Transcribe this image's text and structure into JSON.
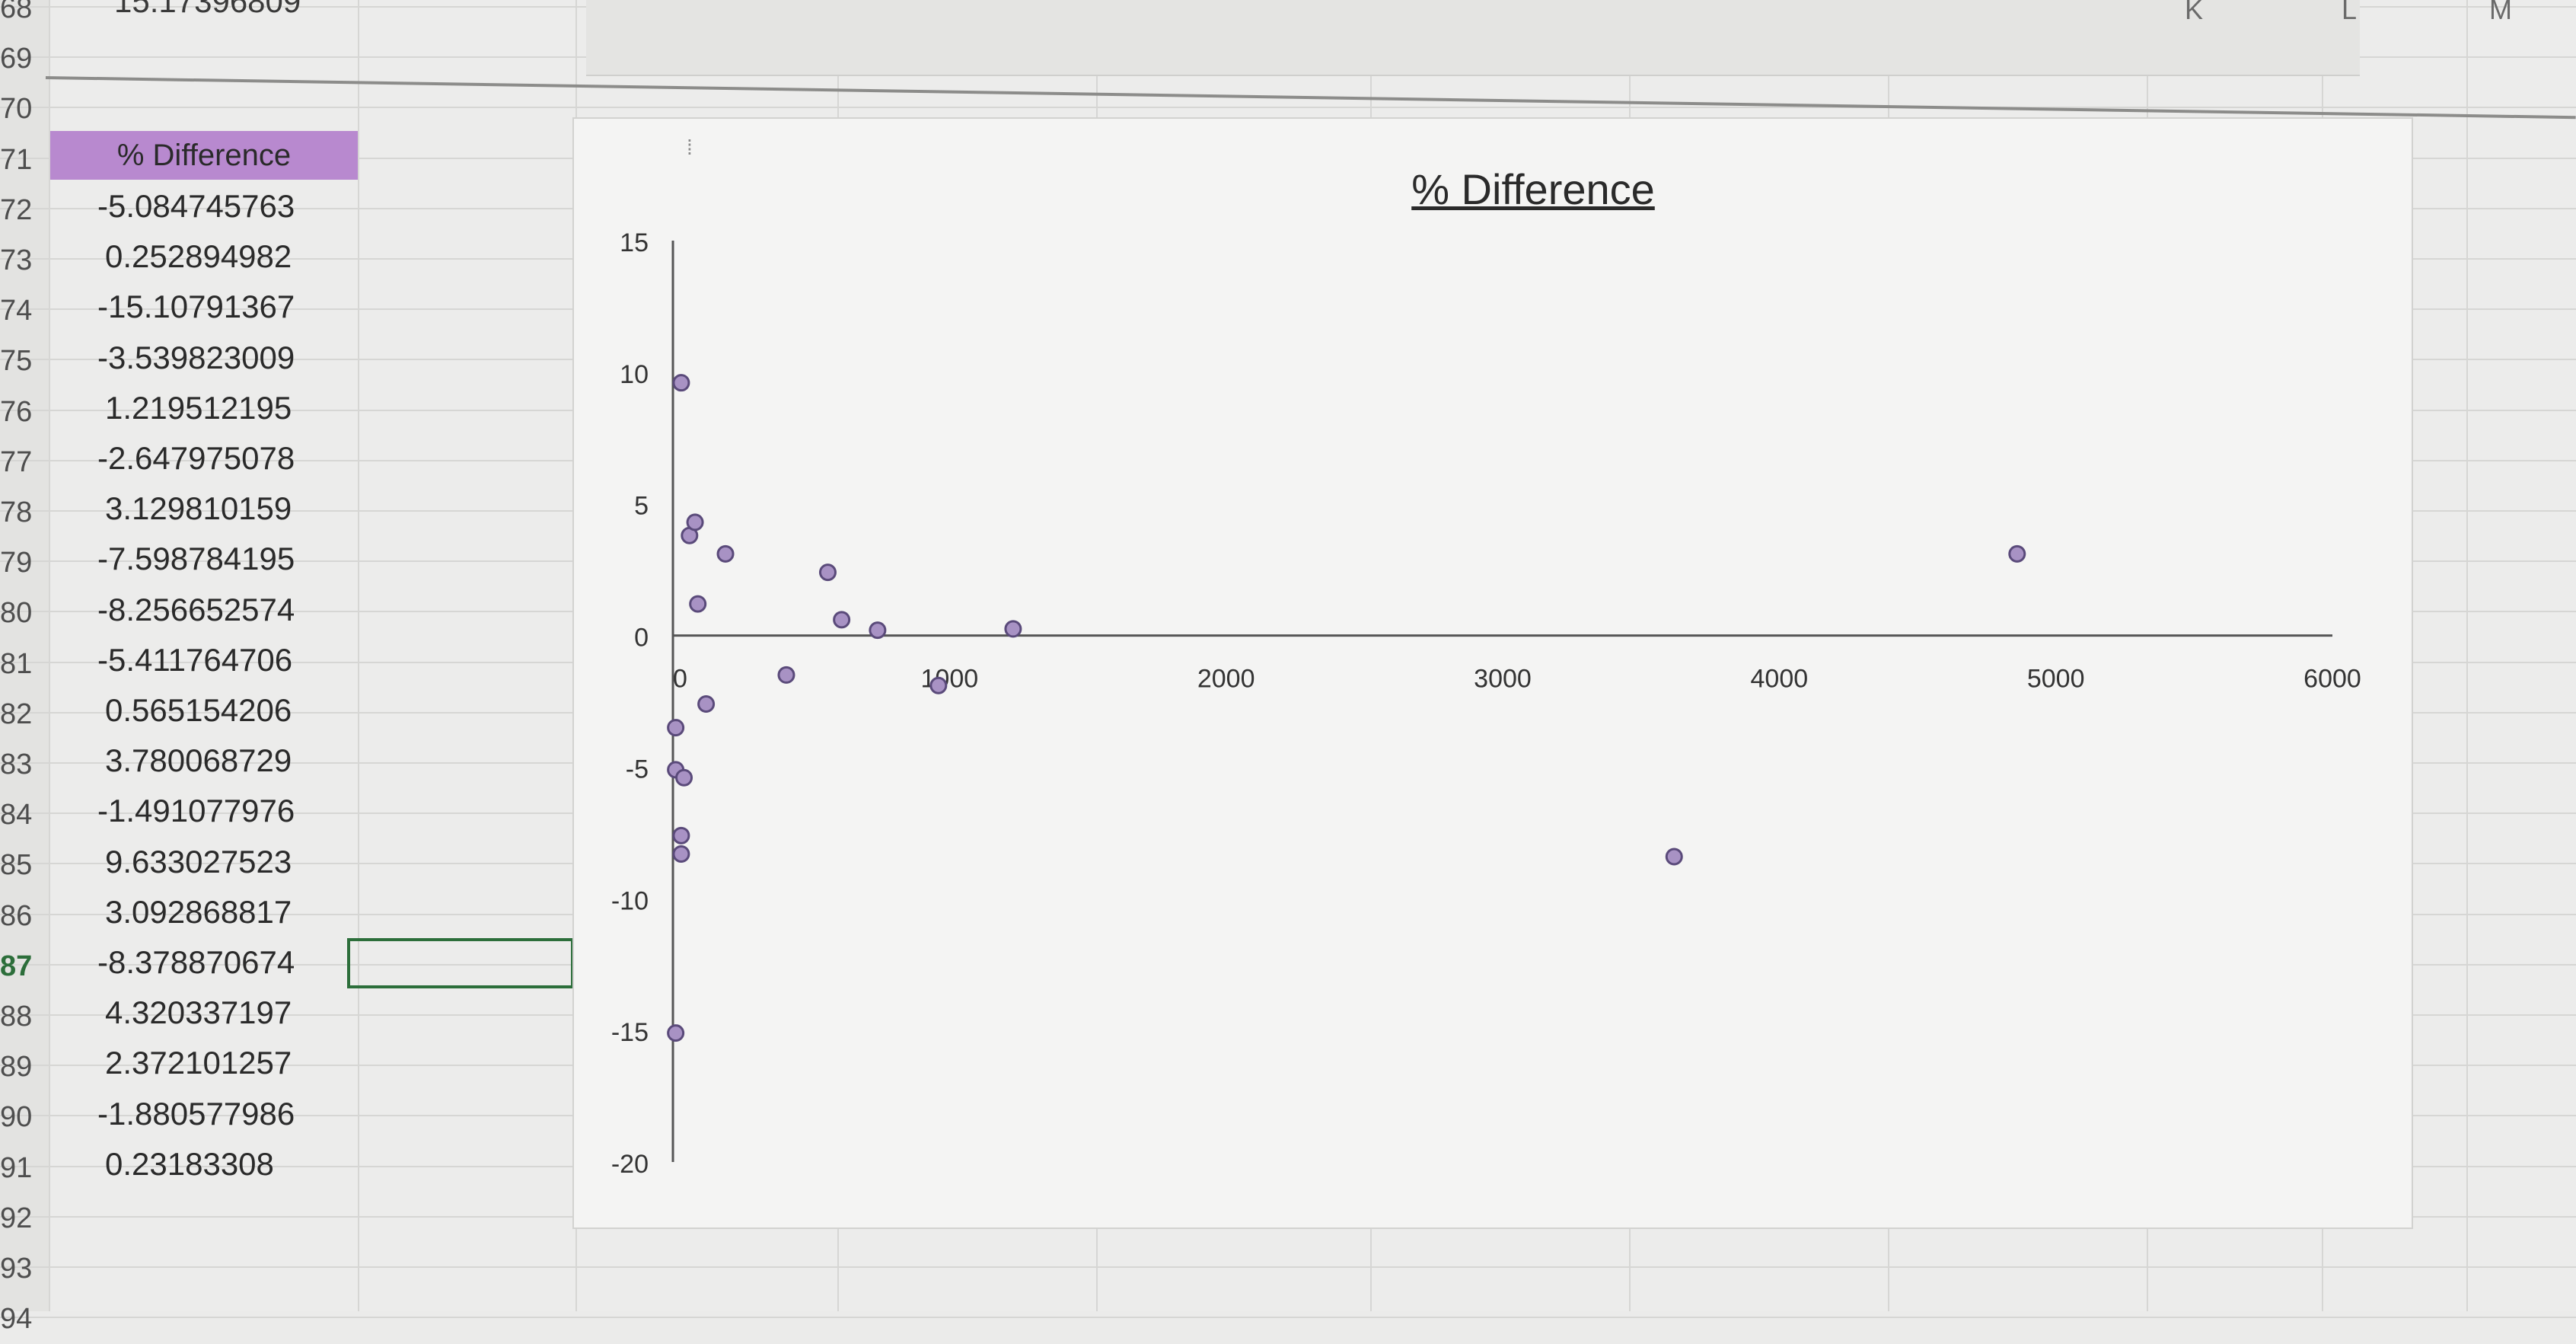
{
  "sheet": {
    "top_value": "15.17396809",
    "column_letters": [
      {
        "letter": "K"
      },
      {
        "letter": "L"
      },
      {
        "letter": "M"
      }
    ],
    "row_numbers": [
      "68",
      "69",
      "70",
      "71",
      "72",
      "73",
      "74",
      "75",
      "76",
      "77",
      "78",
      "79",
      "80",
      "81",
      "82",
      "83",
      "84",
      "85",
      "86",
      "87",
      "88",
      "89",
      "90",
      "91",
      "92",
      "93",
      "94"
    ],
    "active_row": "87",
    "header": "% Difference",
    "values": [
      "-5.084745763",
      "0.252894982",
      "-15.10791367",
      "-3.539823009",
      "1.219512195",
      "-2.647975078",
      "3.129810159",
      "-7.598784195",
      "-8.256652574",
      "-5.411764706",
      "0.565154206",
      "3.780068729",
      "-1.491077976",
      "9.633027523",
      "3.092868817",
      "-8.378870674",
      "4.320337197",
      "2.372101257",
      "-1.880577986",
      "0.23183308"
    ]
  },
  "chart": {
    "title": "% Difference",
    "colors": {
      "point_fill": "#a892c4",
      "point_stroke": "#5a4a7a",
      "axis": "#555555"
    }
  },
  "chart_data": {
    "type": "scatter",
    "title": "% Difference",
    "xlabel": "",
    "ylabel": "",
    "xlim": [
      0,
      6000
    ],
    "ylim": [
      -20,
      15
    ],
    "x_ticks": [
      "0",
      "1000",
      "2000",
      "3000",
      "4000",
      "5000",
      "6000"
    ],
    "y_ticks": [
      "15",
      "10",
      "5",
      "0",
      "-5",
      "-10",
      "-15",
      "-20"
    ],
    "grid": false,
    "series": [
      {
        "points": [
          {
            "x": 30,
            "y": 9.6
          },
          {
            "x": 60,
            "y": 3.8
          },
          {
            "x": 80,
            "y": 4.3
          },
          {
            "x": 90,
            "y": 1.2
          },
          {
            "x": 190,
            "y": 3.1
          },
          {
            "x": 560,
            "y": 2.4
          },
          {
            "x": 610,
            "y": 0.6
          },
          {
            "x": 740,
            "y": 0.2
          },
          {
            "x": 1230,
            "y": 0.25
          },
          {
            "x": 4860,
            "y": 3.1
          },
          {
            "x": 120,
            "y": -2.6
          },
          {
            "x": 410,
            "y": -1.5
          },
          {
            "x": 960,
            "y": -1.9
          },
          {
            "x": 10,
            "y": -3.5
          },
          {
            "x": 10,
            "y": -5.1
          },
          {
            "x": 40,
            "y": -5.4
          },
          {
            "x": 30,
            "y": -7.6
          },
          {
            "x": 30,
            "y": -8.3
          },
          {
            "x": 3620,
            "y": -8.4
          },
          {
            "x": 10,
            "y": -15.1
          }
        ]
      }
    ]
  }
}
